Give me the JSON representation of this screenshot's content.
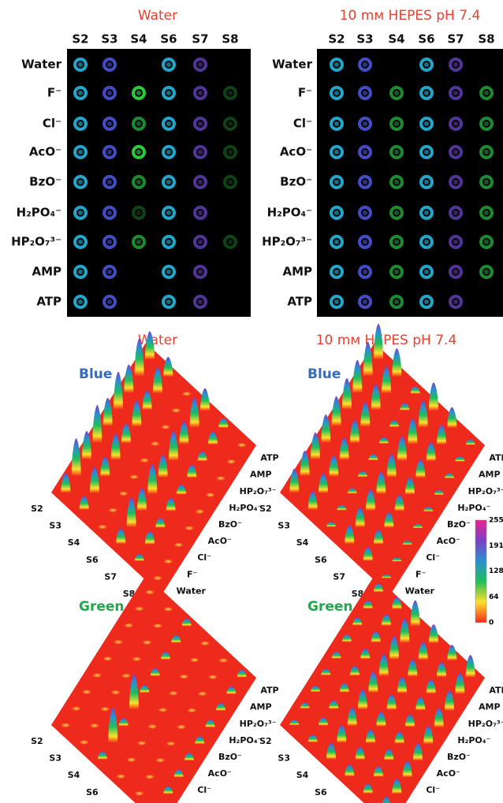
{
  "heatmaps": {
    "titles": [
      "Water",
      "10 mм HEPES pH 7.4"
    ],
    "columns": [
      "S2",
      "S3",
      "S4",
      "S6",
      "S7",
      "S8"
    ],
    "rows": [
      "Water",
      "F⁻",
      "Cl⁻",
      "AcO⁻",
      "BzO⁻",
      "H₂PO₄⁻",
      "HP₂O₇³⁻",
      "AMP",
      "ATP"
    ]
  },
  "surfaces": {
    "titles": [
      "Water",
      "10 mм HEPES pH 7.4"
    ],
    "channels": [
      "Blue",
      "Green"
    ]
  },
  "colorbar": {
    "ticks": [
      255,
      191,
      128,
      64,
      0
    ]
  }
}
